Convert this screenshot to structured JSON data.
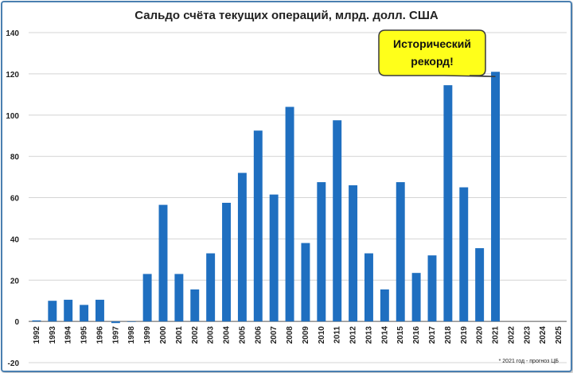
{
  "chart_data": {
    "type": "bar",
    "title": "Сальдо счёта текущих операций, млрд. долл. США",
    "categories": [
      "1992",
      "1993",
      "1994",
      "1995",
      "1996",
      "1997",
      "1998",
      "1999",
      "2000",
      "2001",
      "2002",
      "2003",
      "2004",
      "2005",
      "2006",
      "2007",
      "2008",
      "2009",
      "2010",
      "2011",
      "2012",
      "2013",
      "2014",
      "2015",
      "2016",
      "2017",
      "2018",
      "2019",
      "2020",
      "2021",
      "2022",
      "2023",
      "2024",
      "2025"
    ],
    "values": [
      0.5,
      10,
      10.5,
      8,
      10.5,
      -0.8,
      0,
      23,
      56.5,
      23,
      15.5,
      33,
      57.5,
      72,
      92.5,
      61.5,
      104,
      38,
      67.5,
      97.5,
      66,
      33,
      15.5,
      67.5,
      23.5,
      32,
      114.5,
      65,
      35.5,
      121,
      null,
      null,
      null,
      null
    ],
    "ylim": [
      -20,
      140
    ],
    "yticks": [
      -20,
      0,
      20,
      40,
      60,
      80,
      100,
      120,
      140
    ],
    "grid": true,
    "bar_color": "#1f6fc0",
    "annotation": {
      "line1": "Исторический",
      "line2": "рекорд!",
      "target_category": "2021",
      "fill_color": "#ffff1a"
    },
    "footnote": "* 2021 год - прогноз ЦБ"
  }
}
